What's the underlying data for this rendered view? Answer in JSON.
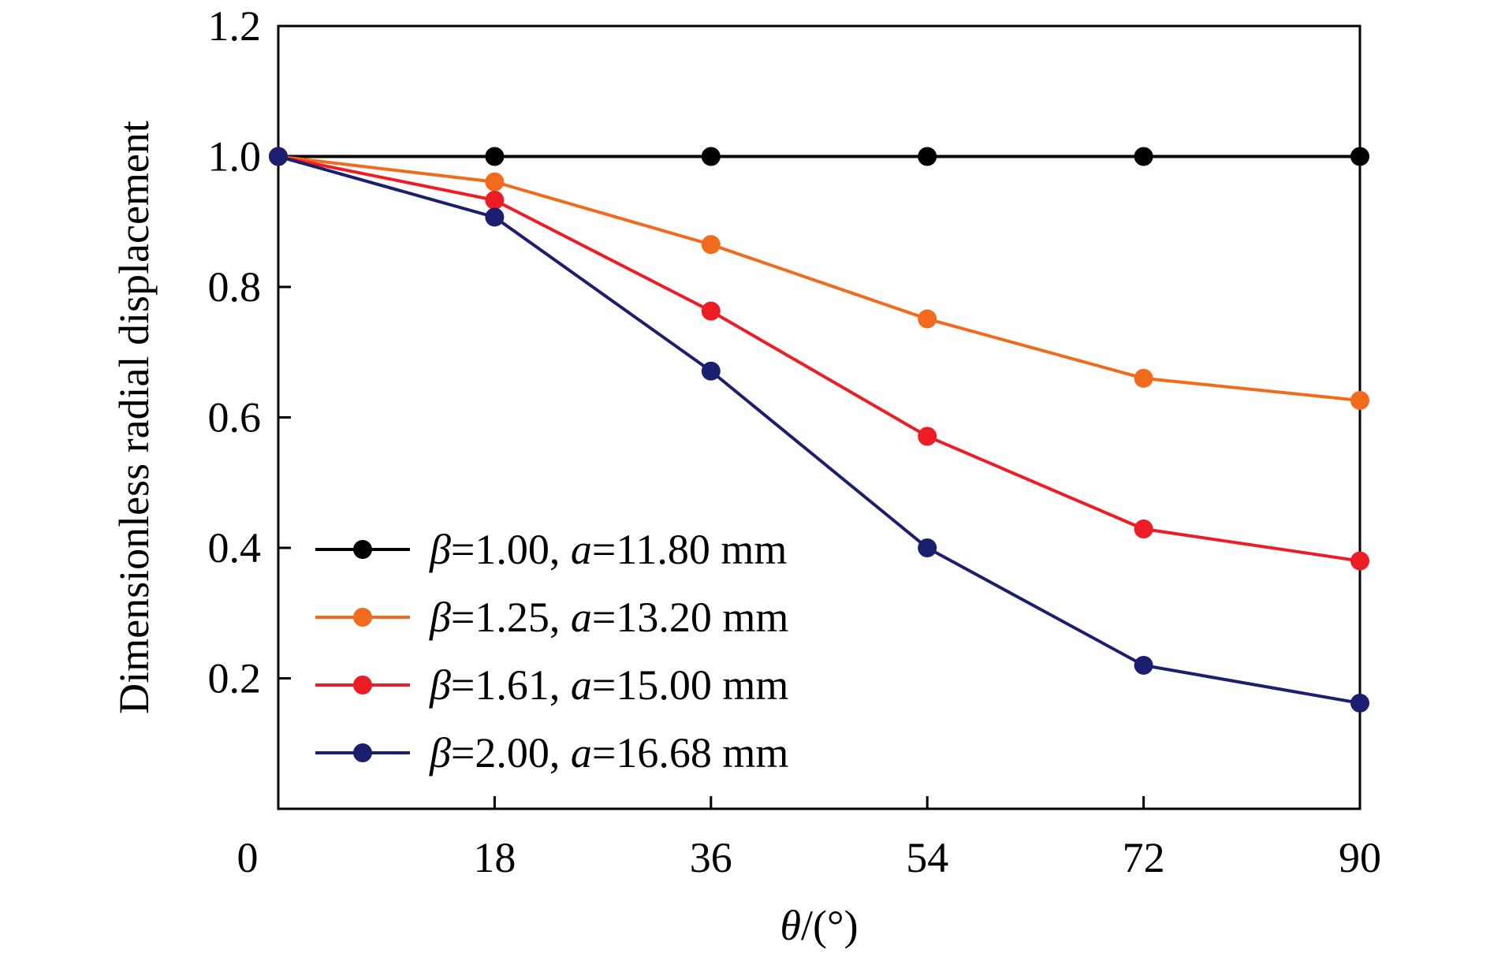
{
  "chart_data": {
    "type": "line",
    "title": "",
    "xlabel": {
      "symbol": "θ",
      "rest": "/(°)"
    },
    "ylabel": "Dimensionless radial displacement",
    "x": [
      0,
      18,
      36,
      54,
      72,
      90
    ],
    "xticks": [
      0,
      18,
      36,
      54,
      72,
      90
    ],
    "xlim": [
      0,
      90
    ],
    "yticks": [
      0.2,
      0.4,
      0.6,
      0.8,
      1.0,
      1.2
    ],
    "ylim": [
      0,
      1.2
    ],
    "grid": false,
    "legend_position": "lower-left",
    "series": [
      {
        "name": "β=1.00, a=11.80 mm",
        "beta": "1.00",
        "a": "11.80 mm",
        "color": "#000000",
        "values": [
          1.0,
          1.0,
          1.0,
          1.0,
          1.0,
          1.0
        ]
      },
      {
        "name": "β=1.25, a=13.20 mm",
        "beta": "1.25",
        "a": "13.20 mm",
        "color": "#f26b1d",
        "values": [
          1.0,
          0.961,
          0.865,
          0.751,
          0.66,
          0.626
        ]
      },
      {
        "name": "β=1.61, a=15.00 mm",
        "beta": "1.61",
        "a": "15.00 mm",
        "color": "#ee1c25",
        "values": [
          1.0,
          0.933,
          0.763,
          0.571,
          0.429,
          0.38
        ]
      },
      {
        "name": "β=2.00, a=16.68 mm",
        "beta": "2.00",
        "a": "16.68 mm",
        "color": "#1b1f6e",
        "values": [
          1.0,
          0.907,
          0.671,
          0.4,
          0.22,
          0.162
        ]
      }
    ]
  }
}
